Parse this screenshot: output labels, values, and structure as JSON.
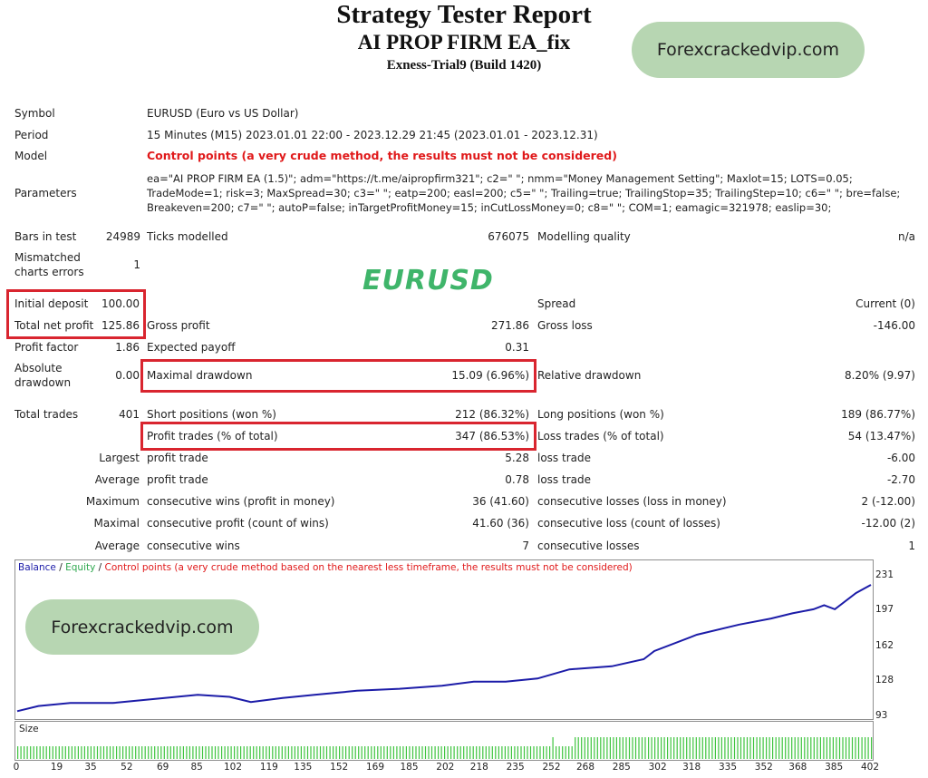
{
  "report": {
    "title": "Strategy Tester Report",
    "ea_name": "AI PROP FIRM EA_fix",
    "server": "Exness-Trial9 (Build 1420)"
  },
  "watermark_text": "Forexcrackedvip.com",
  "overlay_label": "EURUSD",
  "info": {
    "symbol_label": "Symbol",
    "symbol_value": "EURUSD (Euro vs US Dollar)",
    "period_label": "Period",
    "period_value": "15 Minutes (M15) 2023.01.01 22:00 - 2023.12.29 21:45 (2023.01.01 - 2023.12.31)",
    "model_label": "Model",
    "model_value": "Control points (a very crude method, the results must not be considered)",
    "parameters_label": "Parameters",
    "parameters_lines": [
      "ea=\"AI PROP FIRM EA (1.5)\"; adm=\"https://t.me/aipropfirm321\"; c2=\" \"; nmm=\"Money Management Setting\"; Maxlot=15; LOTS=0.05;",
      "TradeMode=1; risk=3; MaxSpread=30; c3=\" \"; eatp=200; easl=200; c5=\" \"; Trailing=true; TrailingStop=35; TrailingStep=10; c6=\" \"; bre=false;",
      "Breakeven=200; c7=\" \"; autoP=false; inTargetProfitMoney=15; inCutLossMoney=0; c8=\" \"; COM=1; eamagic=321978; easlip=30;"
    ]
  },
  "stats": {
    "bars_label": "Bars in test",
    "bars_value": "24989",
    "ticks_label": "Ticks modelled",
    "ticks_value": "676075",
    "quality_label": "Modelling quality",
    "quality_value": "n/a",
    "mismatch_label_1": "Mismatched",
    "mismatch_label_2": "charts errors",
    "mismatch_value": "1",
    "deposit_label": "Initial deposit",
    "deposit_value": "100.00",
    "spread_label": "Spread",
    "spread_value": "Current (0)",
    "net_label": "Total net profit",
    "net_value": "125.86",
    "gross_profit_label": "Gross profit",
    "gross_profit_value": "271.86",
    "gross_loss_label": "Gross loss",
    "gross_loss_value": "-146.00",
    "pf_label": "Profit factor",
    "pf_value": "1.86",
    "ep_label": "Expected payoff",
    "ep_value": "0.31",
    "abs_dd_label_1": "Absolute",
    "abs_dd_label_2": "drawdown",
    "abs_dd_value": "0.00",
    "max_dd_label": "Maximal drawdown",
    "max_dd_value": "15.09 (6.96%)",
    "rel_dd_label": "Relative drawdown",
    "rel_dd_value": "8.20% (9.97)",
    "trades_label": "Total trades",
    "trades_value": "401",
    "short_label": "Short positions (won %)",
    "short_value": "212 (86.32%)",
    "long_label": "Long positions (won %)",
    "long_value": "189 (86.77%)",
    "profit_trades_label": "Profit trades (% of total)",
    "profit_trades_value": "347 (86.53%)",
    "loss_trades_label": "Loss trades (% of total)",
    "loss_trades_value": "54 (13.47%)",
    "largest": "Largest",
    "average": "Average",
    "maximum": "Maximum",
    "maximal": "Maximal",
    "lp_label": "profit trade",
    "lp_value": "5.28",
    "ll_label": "loss trade",
    "ll_value": "-6.00",
    "ap_label": "profit trade",
    "ap_value": "0.78",
    "al_label": "loss trade",
    "al_value": "-2.70",
    "mcw_label": "consecutive wins (profit in money)",
    "mcw_value": "36 (41.60)",
    "mcl_label": "consecutive losses (loss in money)",
    "mcl_value": "2 (-12.00)",
    "mcp_label": "consecutive profit (count of wins)",
    "mcp_value": "41.60 (36)",
    "mclc_label": "consecutive loss (count of losses)",
    "mclc_value": "-12.00 (2)",
    "acw_label": "consecutive wins",
    "acw_value": "7",
    "acl_label": "consecutive losses",
    "acl_value": "1"
  },
  "chart_data": {
    "type": "line",
    "legend": {
      "balance": "Balance",
      "sep1": " / ",
      "equity": "Equity",
      "sep2": " / ",
      "note": "Control points (a very crude method based on the nearest less timeframe, the results must not be considered)"
    },
    "colors": {
      "balance": "#1c1ca8",
      "equity": "#2fa84f",
      "note": "#e0191a",
      "size": "#3ec43e"
    },
    "y_ticks": [
      "231",
      "197",
      "162",
      "128",
      "93"
    ],
    "ylim": [
      93,
      231
    ],
    "x_ticks": [
      "0",
      "19",
      "35",
      "52",
      "69",
      "85",
      "102",
      "119",
      "135",
      "152",
      "169",
      "185",
      "202",
      "218",
      "235",
      "252",
      "268",
      "285",
      "302",
      "318",
      "335",
      "352",
      "368",
      "385",
      "402"
    ],
    "xlim": [
      0,
      402
    ],
    "balance": {
      "x": [
        0,
        10,
        25,
        45,
        60,
        85,
        100,
        110,
        125,
        140,
        160,
        180,
        200,
        215,
        230,
        245,
        260,
        280,
        295,
        300,
        320,
        340,
        355,
        365,
        375,
        380,
        385,
        395,
        402
      ],
      "y": [
        99,
        104,
        107,
        107,
        110,
        115,
        113,
        108,
        112,
        115,
        119,
        121,
        124,
        128,
        128,
        131,
        140,
        143,
        150,
        158,
        174,
        184,
        190,
        195,
        199,
        203,
        199,
        215,
        223
      ]
    },
    "size_panel_label": "Size",
    "size_series": {
      "x": [
        0,
        251,
        252,
        253,
        261,
        262,
        402
      ],
      "level": [
        0.35,
        0.35,
        0.6,
        0.35,
        0.35,
        0.6,
        0.6
      ]
    }
  }
}
